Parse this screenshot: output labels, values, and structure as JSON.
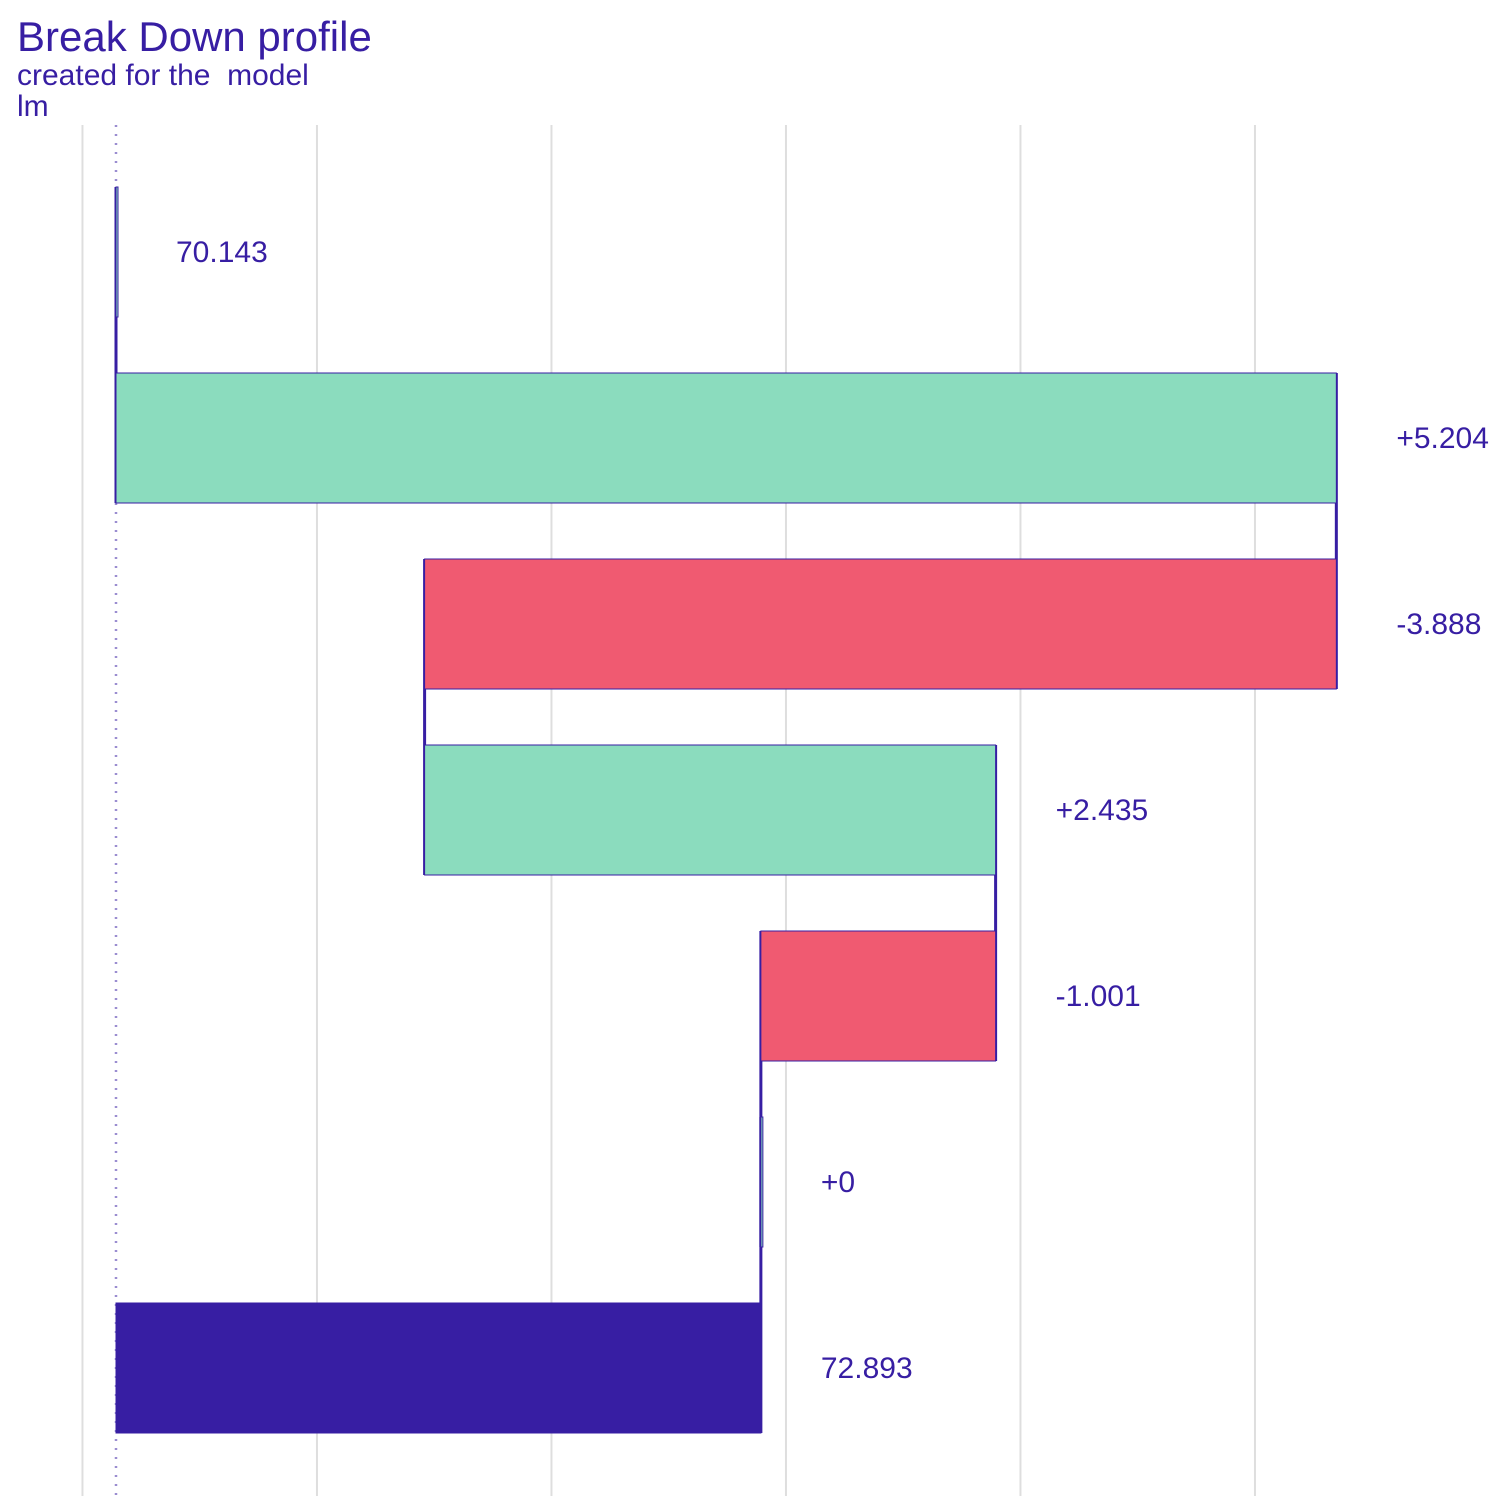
{
  "chart_data": {
    "type": "bar",
    "title": "Break Down profile",
    "subtitle": "created for the  model",
    "subtitle2": "lm",
    "xlabel": "",
    "ylabel": "",
    "intercept": 70.143,
    "prediction": 72.893,
    "xlim": [
      69.4,
      75.6
    ],
    "grid": true,
    "legend": "none",
    "bars": [
      {
        "start": 70.143,
        "end": 70.143,
        "label": "70.143",
        "kind": "intercept"
      },
      {
        "start": 70.143,
        "end": 75.347,
        "label": "+5.204",
        "kind": "positive"
      },
      {
        "start": 75.347,
        "end": 71.459,
        "label": "-3.888",
        "kind": "negative"
      },
      {
        "start": 71.459,
        "end": 73.894,
        "label": "+2.435",
        "kind": "positive"
      },
      {
        "start": 73.894,
        "end": 72.893,
        "label": "-1.001",
        "kind": "negative"
      },
      {
        "start": 72.893,
        "end": 72.893,
        "label": "+0",
        "kind": "positive"
      },
      {
        "start": 70.143,
        "end": 72.893,
        "label": "72.893",
        "kind": "prediction"
      }
    ],
    "colors": {
      "positive": "#8bdcbe",
      "negative": "#f05a71",
      "prediction": "#371ea3",
      "text": "#371ea3",
      "grid": "#dedede"
    }
  }
}
